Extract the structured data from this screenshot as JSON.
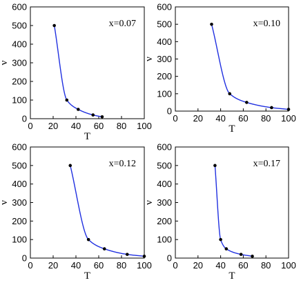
{
  "chart_data": [
    {
      "type": "scatter",
      "annotation": "x=0.07",
      "xlabel": "T",
      "ylabel": "ν",
      "xlim": [
        0,
        100
      ],
      "ylim": [
        0,
        600
      ],
      "x_ticks": [
        0,
        20,
        40,
        60,
        80,
        100
      ],
      "y_ticks": [
        0,
        100,
        200,
        300,
        400,
        500,
        600
      ],
      "grid": false,
      "curve_color": "#1f2fe0",
      "point_color": "#000000",
      "points": [
        {
          "x": 21,
          "y": 500
        },
        {
          "x": 32,
          "y": 100
        },
        {
          "x": 42,
          "y": 50
        },
        {
          "x": 55,
          "y": 20
        },
        {
          "x": 63,
          "y": 10
        }
      ]
    },
    {
      "type": "scatter",
      "annotation": "x=0.10",
      "xlabel": "T",
      "ylabel": "ν",
      "xlim": [
        0,
        100
      ],
      "ylim": [
        0,
        600
      ],
      "x_ticks": [
        0,
        20,
        40,
        60,
        80,
        100
      ],
      "y_ticks": [
        0,
        100,
        200,
        300,
        400,
        500,
        600
      ],
      "grid": false,
      "curve_color": "#1f2fe0",
      "point_color": "#000000",
      "points": [
        {
          "x": 32,
          "y": 500
        },
        {
          "x": 48,
          "y": 100
        },
        {
          "x": 63,
          "y": 50
        },
        {
          "x": 85,
          "y": 20
        },
        {
          "x": 100,
          "y": 10
        }
      ]
    },
    {
      "type": "scatter",
      "annotation": "x=0.12",
      "xlabel": "T",
      "ylabel": "ν",
      "xlim": [
        0,
        100
      ],
      "ylim": [
        0,
        600
      ],
      "x_ticks": [
        0,
        20,
        40,
        60,
        80,
        100
      ],
      "y_ticks": [
        0,
        100,
        200,
        300,
        400,
        500,
        600
      ],
      "grid": false,
      "curve_color": "#1f2fe0",
      "point_color": "#000000",
      "points": [
        {
          "x": 35,
          "y": 500
        },
        {
          "x": 51,
          "y": 100
        },
        {
          "x": 65,
          "y": 50
        },
        {
          "x": 85,
          "y": 20
        },
        {
          "x": 100,
          "y": 10
        }
      ]
    },
    {
      "type": "scatter",
      "annotation": "x=0.17",
      "xlabel": "T",
      "ylabel": "ν",
      "xlim": [
        0,
        100
      ],
      "ylim": [
        0,
        600
      ],
      "x_ticks": [
        0,
        20,
        40,
        60,
        80,
        100
      ],
      "y_ticks": [
        0,
        100,
        200,
        300,
        400,
        500,
        600
      ],
      "grid": false,
      "curve_color": "#1f2fe0",
      "point_color": "#000000",
      "points": [
        {
          "x": 35,
          "y": 500
        },
        {
          "x": 40,
          "y": 100
        },
        {
          "x": 45,
          "y": 50
        },
        {
          "x": 58,
          "y": 20
        },
        {
          "x": 68,
          "y": 10
        }
      ]
    }
  ]
}
